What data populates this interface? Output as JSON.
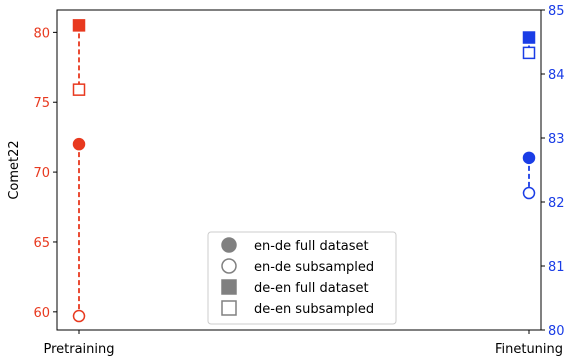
{
  "chart_data": {
    "type": "scatter",
    "categories": [
      "Pretraining",
      "Finetuning"
    ],
    "title": "",
    "xlabel": "",
    "ylabel_left": "Comet22",
    "ylabel_right": "",
    "ylim_left": [
      58.7,
      81.6
    ],
    "ylim_right": [
      80,
      85
    ],
    "yticks_left": [
      60,
      65,
      70,
      75,
      80
    ],
    "yticks_right": [
      80,
      81,
      82,
      83,
      84,
      85
    ],
    "grid": false,
    "legend_position": "lower center",
    "colors": {
      "left_axis": "#e8391f",
      "right_axis": "#1a3de6",
      "legend_marker": "#808080"
    },
    "series": [
      {
        "name": "en-de full dataset",
        "marker": "filled-circle",
        "category": "Pretraining",
        "axis": "left",
        "value": 72.0
      },
      {
        "name": "en-de subsampled",
        "marker": "open-circle",
        "category": "Pretraining",
        "axis": "left",
        "value": 59.7
      },
      {
        "name": "de-en full dataset",
        "marker": "filled-square",
        "category": "Pretraining",
        "axis": "left",
        "value": 80.5
      },
      {
        "name": "de-en subsampled",
        "marker": "open-square",
        "category": "Pretraining",
        "axis": "left",
        "value": 75.9
      },
      {
        "name": "en-de full dataset",
        "marker": "filled-circle",
        "category": "Finetuning",
        "axis": "right",
        "value": 82.69
      },
      {
        "name": "en-de subsampled",
        "marker": "open-circle",
        "category": "Finetuning",
        "axis": "right",
        "value": 82.14
      },
      {
        "name": "de-en full dataset",
        "marker": "filled-square",
        "category": "Finetuning",
        "axis": "right",
        "value": 84.57
      },
      {
        "name": "de-en subsampled",
        "marker": "open-square",
        "category": "Finetuning",
        "axis": "right",
        "value": 84.33
      }
    ],
    "connectors": [
      {
        "category": "Pretraining",
        "axis": "left",
        "from": 72.0,
        "to": 59.7
      },
      {
        "category": "Pretraining",
        "axis": "left",
        "from": 80.5,
        "to": 75.9
      },
      {
        "category": "Finetuning",
        "axis": "right",
        "from": 82.69,
        "to": 82.14
      },
      {
        "category": "Finetuning",
        "axis": "right",
        "from": 84.57,
        "to": 84.33
      }
    ],
    "legend": [
      {
        "label": "en-de full dataset",
        "marker": "filled-circle"
      },
      {
        "label": "en-de subsampled",
        "marker": "open-circle"
      },
      {
        "label": "de-en full dataset",
        "marker": "filled-square"
      },
      {
        "label": "de-en subsampled",
        "marker": "open-square"
      }
    ]
  }
}
